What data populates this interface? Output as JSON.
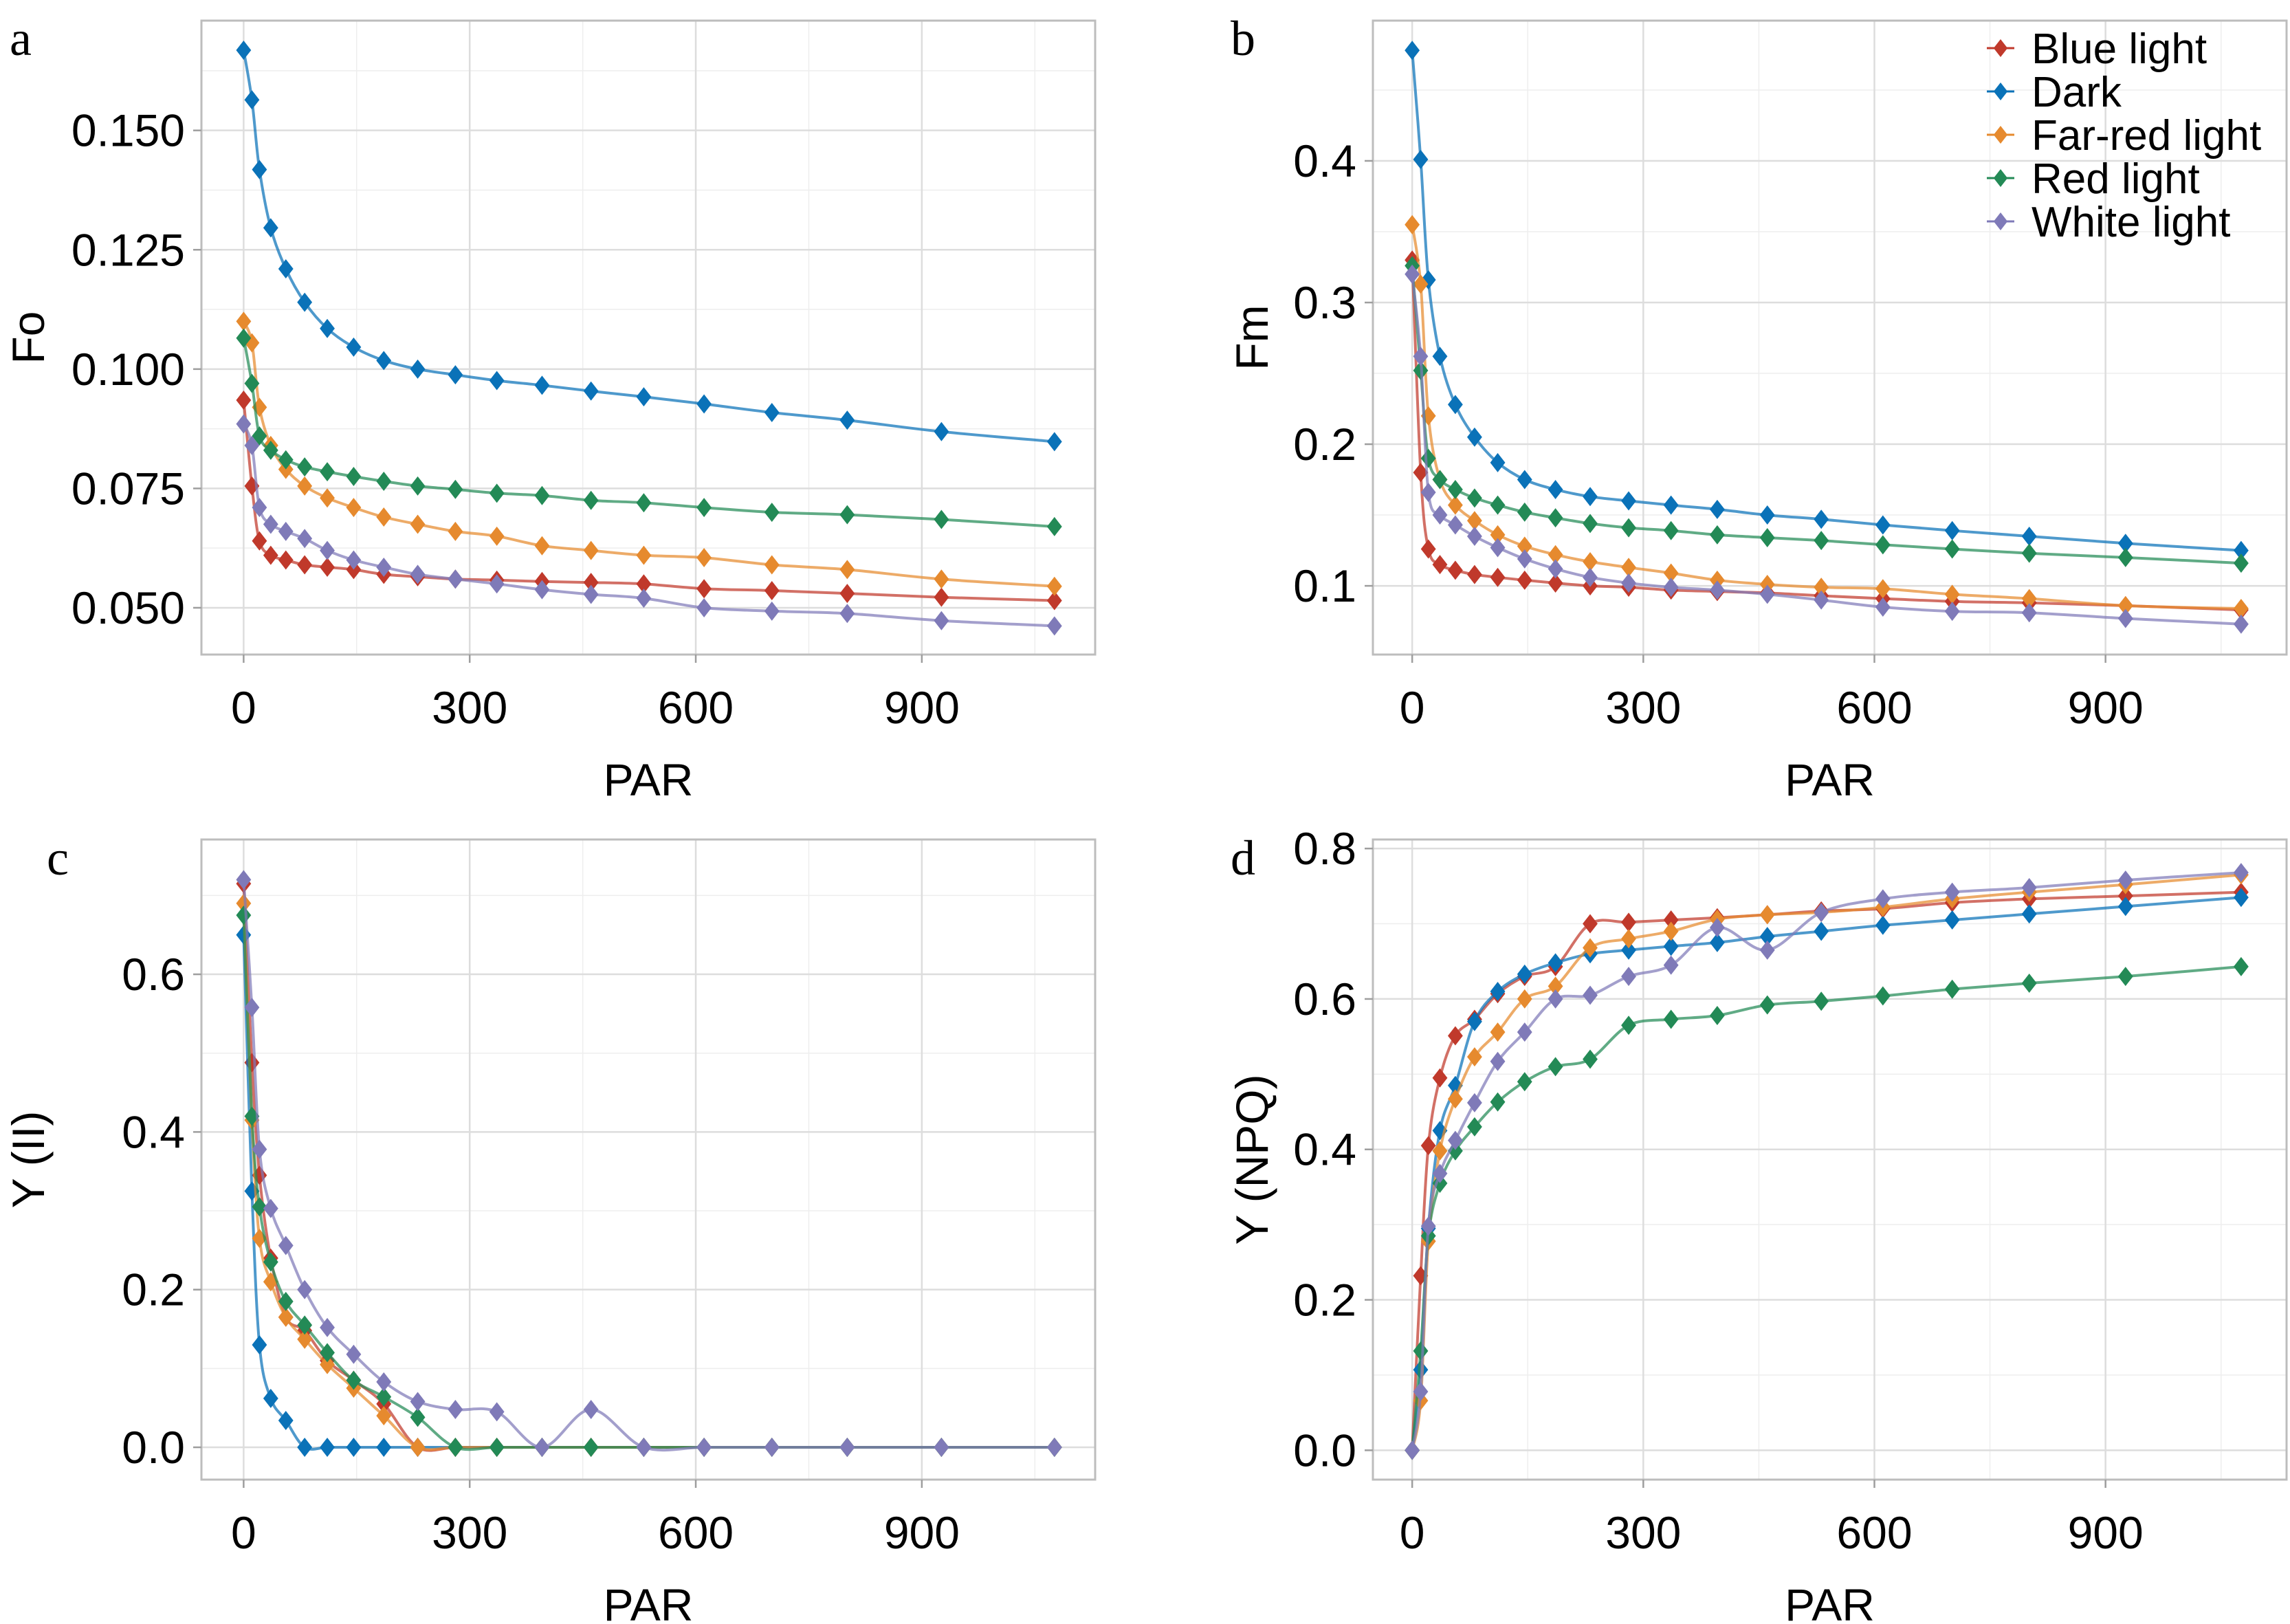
{
  "figure": {
    "series_names": [
      "Blue light",
      "Dark",
      "Far-red light",
      "Red light",
      "White light"
    ],
    "colors": {
      "Blue light": "#c0392b",
      "Dark": "#0a72b8",
      "Far-red light": "#e68a2e",
      "Red light": "#238a56",
      "White light": "#7f7ab8"
    },
    "marker": "diamond"
  },
  "chart_data": [
    {
      "panel": "a",
      "type": "line",
      "title": "",
      "xlabel": "PAR",
      "ylabel": "Fo",
      "xlim": [
        -56,
        1130
      ],
      "ylim": [
        0.0402,
        0.173
      ],
      "xticks": [
        0,
        300,
        600,
        900
      ],
      "xtick_labels": [
        "0",
        "300",
        "600",
        "900"
      ],
      "yticks": [
        0.05,
        0.075,
        0.1,
        0.125,
        0.15
      ],
      "ytick_labels": [
        "0.050",
        "0.075",
        "0.100",
        "0.125",
        "0.150"
      ],
      "grid": true,
      "legend": "none",
      "x": [
        0,
        11,
        21,
        36,
        56,
        81,
        111,
        146,
        186,
        231,
        281,
        336,
        396,
        461,
        531,
        611,
        701,
        801,
        926,
        1076
      ],
      "series": [
        {
          "name": "Blue light",
          "values": [
            0.0935,
            0.0755,
            0.064,
            0.061,
            0.06,
            0.059,
            0.0585,
            0.058,
            0.057,
            0.0565,
            0.056,
            0.0558,
            0.0555,
            0.0553,
            0.055,
            0.054,
            0.0536,
            0.053,
            0.0522,
            0.0515
          ]
        },
        {
          "name": "Dark",
          "values": [
            0.1668,
            0.1564,
            0.1418,
            0.1296,
            0.121,
            0.114,
            0.1085,
            0.1046,
            0.1018,
            0.1,
            0.0988,
            0.0976,
            0.0966,
            0.0954,
            0.0942,
            0.0927,
            0.0909,
            0.0893,
            0.0869,
            0.0848
          ]
        },
        {
          "name": "Far-red light",
          "values": [
            0.11,
            0.1055,
            0.092,
            0.084,
            0.079,
            0.0755,
            0.073,
            0.071,
            0.069,
            0.0675,
            0.066,
            0.065,
            0.063,
            0.062,
            0.061,
            0.0605,
            0.059,
            0.058,
            0.056,
            0.0545
          ]
        },
        {
          "name": "Red light",
          "values": [
            0.1065,
            0.097,
            0.086,
            0.083,
            0.081,
            0.0795,
            0.0785,
            0.0775,
            0.0765,
            0.0755,
            0.0748,
            0.074,
            0.0735,
            0.0725,
            0.072,
            0.071,
            0.07,
            0.0695,
            0.0685,
            0.067
          ]
        },
        {
          "name": "White light",
          "values": [
            0.0885,
            0.084,
            0.071,
            0.0675,
            0.066,
            0.0645,
            0.062,
            0.06,
            0.0585,
            0.057,
            0.056,
            0.055,
            0.0538,
            0.0528,
            0.052,
            0.05,
            0.0493,
            0.0488,
            0.0473,
            0.0462
          ]
        }
      ]
    },
    {
      "panel": "b",
      "type": "line",
      "title": "",
      "xlabel": "PAR",
      "ylabel": "Fm",
      "xlim": [
        -51,
        1135
      ],
      "ylim": [
        0.0515,
        0.499
      ],
      "xticks": [
        0,
        300,
        600,
        900
      ],
      "xtick_labels": [
        "0",
        "300",
        "600",
        "900"
      ],
      "yticks": [
        0.1,
        0.2,
        0.3,
        0.4
      ],
      "ytick_labels": [
        "0.1",
        "0.2",
        "0.3",
        "0.4"
      ],
      "grid": true,
      "legend": "top-right",
      "x": [
        0,
        11,
        21,
        36,
        56,
        81,
        111,
        146,
        186,
        231,
        281,
        336,
        396,
        461,
        531,
        611,
        701,
        801,
        926,
        1076
      ],
      "series": [
        {
          "name": "Blue light",
          "values": [
            0.33,
            0.18,
            0.126,
            0.115,
            0.111,
            0.108,
            0.106,
            0.104,
            0.102,
            0.1,
            0.099,
            0.097,
            0.096,
            0.095,
            0.093,
            0.091,
            0.089,
            0.088,
            0.086,
            0.083
          ]
        },
        {
          "name": "Dark",
          "values": [
            0.478,
            0.401,
            0.316,
            0.262,
            0.228,
            0.205,
            0.187,
            0.175,
            0.168,
            0.163,
            0.16,
            0.157,
            0.154,
            0.15,
            0.147,
            0.143,
            0.139,
            0.135,
            0.13,
            0.125
          ]
        },
        {
          "name": "Far-red light",
          "values": [
            0.355,
            0.313,
            0.22,
            0.175,
            0.157,
            0.146,
            0.136,
            0.128,
            0.122,
            0.117,
            0.113,
            0.109,
            0.104,
            0.101,
            0.099,
            0.098,
            0.094,
            0.091,
            0.086,
            0.084
          ]
        },
        {
          "name": "Red light",
          "values": [
            0.326,
            0.252,
            0.19,
            0.175,
            0.168,
            0.162,
            0.157,
            0.152,
            0.148,
            0.144,
            0.141,
            0.139,
            0.136,
            0.134,
            0.132,
            0.129,
            0.126,
            0.123,
            0.12,
            0.116
          ]
        },
        {
          "name": "White light",
          "values": [
            0.32,
            0.262,
            0.166,
            0.15,
            0.143,
            0.135,
            0.127,
            0.119,
            0.112,
            0.106,
            0.102,
            0.099,
            0.097,
            0.094,
            0.09,
            0.085,
            0.082,
            0.081,
            0.077,
            0.073
          ]
        }
      ]
    },
    {
      "panel": "c",
      "type": "line",
      "title": "",
      "xlabel": "PAR",
      "ylabel": "Y (II)",
      "xlim": [
        -56,
        1130
      ],
      "ylim": [
        -0.041,
        0.771
      ],
      "xticks": [
        0,
        300,
        600,
        900
      ],
      "xtick_labels": [
        "0",
        "300",
        "600",
        "900"
      ],
      "yticks": [
        0.0,
        0.2,
        0.4,
        0.6
      ],
      "ytick_labels": [
        "0.0",
        "0.2",
        "0.4",
        "0.6"
      ],
      "grid": true,
      "legend": "none",
      "x": [
        0,
        11,
        21,
        36,
        56,
        81,
        111,
        146,
        186,
        231,
        281,
        336,
        396,
        461,
        531,
        611,
        701,
        801,
        926,
        1076
      ],
      "series": [
        {
          "name": "Blue light",
          "values": [
            0.715,
            0.488,
            0.345,
            0.24,
            0.165,
            0.148,
            0.11,
            0.085,
            0.055,
            0.0,
            0.0,
            0.0,
            0.0,
            0.0,
            0.0,
            0.0,
            0.0,
            0.0,
            0.0,
            0.0
          ]
        },
        {
          "name": "Dark",
          "values": [
            0.65,
            0.325,
            0.13,
            0.062,
            0.034,
            0.0,
            0.0,
            0.0,
            0.0,
            0.0,
            0.0,
            0.0,
            0.0,
            0.0,
            0.0,
            0.0,
            0.0,
            0.0,
            0.0,
            0.0
          ]
        },
        {
          "name": "Far-red light",
          "values": [
            0.69,
            0.415,
            0.265,
            0.21,
            0.165,
            0.137,
            0.105,
            0.075,
            0.04,
            0.0,
            0.0,
            0.0,
            0.0,
            0.0,
            0.0,
            0.0,
            0.0,
            0.0,
            0.0,
            0.0
          ]
        },
        {
          "name": "Red light",
          "values": [
            0.675,
            0.42,
            0.305,
            0.235,
            0.185,
            0.155,
            0.12,
            0.085,
            0.064,
            0.038,
            0.0,
            0.0,
            0.0,
            0.0,
            0.0,
            0.0,
            0.0,
            0.0,
            0.0,
            0.0
          ]
        },
        {
          "name": "White light",
          "values": [
            0.72,
            0.558,
            0.378,
            0.303,
            0.256,
            0.2,
            0.152,
            0.118,
            0.083,
            0.058,
            0.048,
            0.045,
            0.0,
            0.048,
            0.0,
            0.0,
            0.0,
            0.0,
            0.0,
            0.0
          ]
        }
      ]
    },
    {
      "panel": "d",
      "type": "line",
      "title": "",
      "xlabel": "PAR",
      "ylabel": "Y (NPQ)",
      "xlim": [
        -51,
        1135
      ],
      "ylim": [
        -0.039,
        0.812
      ],
      "xticks": [
        0,
        300,
        600,
        900
      ],
      "xtick_labels": [
        "0",
        "300",
        "600",
        "900"
      ],
      "yticks": [
        0.0,
        0.2,
        0.4,
        0.6,
        0.8
      ],
      "ytick_labels": [
        "0.0",
        "0.2",
        "0.4",
        "0.6",
        "0.8"
      ],
      "grid": true,
      "legend": "none",
      "x": [
        0,
        11,
        21,
        36,
        56,
        81,
        111,
        146,
        186,
        231,
        281,
        336,
        396,
        461,
        531,
        611,
        701,
        801,
        926,
        1076
      ],
      "series": [
        {
          "name": "Blue light",
          "values": [
            0.0,
            0.232,
            0.405,
            0.495,
            0.551,
            0.573,
            0.607,
            0.63,
            0.643,
            0.7,
            0.702,
            0.705,
            0.708,
            0.712,
            0.717,
            0.72,
            0.728,
            0.733,
            0.737,
            0.742
          ]
        },
        {
          "name": "Dark",
          "values": [
            0.0,
            0.107,
            0.295,
            0.425,
            0.485,
            0.57,
            0.61,
            0.633,
            0.648,
            0.66,
            0.665,
            0.67,
            0.675,
            0.683,
            0.69,
            0.698,
            0.705,
            0.713,
            0.723,
            0.735
          ]
        },
        {
          "name": "Far-red light",
          "values": [
            0.0,
            0.066,
            0.278,
            0.398,
            0.467,
            0.523,
            0.556,
            0.6,
            0.617,
            0.668,
            0.68,
            0.69,
            0.706,
            0.712,
            0.715,
            0.722,
            0.733,
            0.742,
            0.752,
            0.765
          ]
        },
        {
          "name": "Red light",
          "values": [
            0.0,
            0.132,
            0.285,
            0.355,
            0.398,
            0.43,
            0.463,
            0.49,
            0.51,
            0.52,
            0.565,
            0.573,
            0.578,
            0.592,
            0.597,
            0.604,
            0.613,
            0.621,
            0.63,
            0.643
          ]
        },
        {
          "name": "White light",
          "values": [
            0.0,
            0.078,
            0.298,
            0.368,
            0.412,
            0.462,
            0.517,
            0.556,
            0.6,
            0.605,
            0.63,
            0.645,
            0.695,
            0.665,
            0.715,
            0.733,
            0.742,
            0.748,
            0.758,
            0.768
          ]
        }
      ]
    }
  ]
}
